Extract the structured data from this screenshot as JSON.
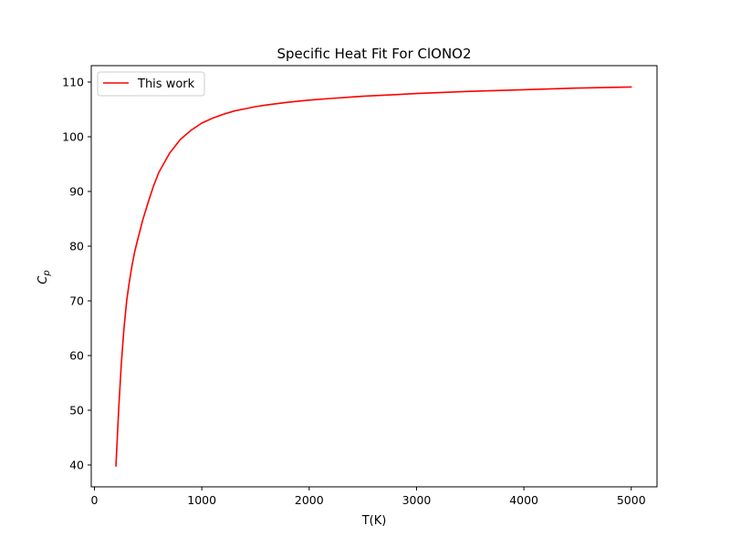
{
  "chart_data": {
    "type": "line",
    "title": "Specific Heat Fit For ClONO2",
    "xlabel": "T(K)",
    "ylabel_main": "C",
    "ylabel_sub": "p",
    "xlim": [
      -30,
      5240
    ],
    "ylim": [
      36,
      113
    ],
    "xticks": [
      0,
      1000,
      2000,
      3000,
      4000,
      5000
    ],
    "yticks": [
      40,
      50,
      60,
      70,
      80,
      90,
      100,
      110
    ],
    "legend_position": "top-left",
    "colors": {
      "series": "#ff0000"
    },
    "series": [
      {
        "name": "This work",
        "x": [
          200,
          225,
          250,
          275,
          300,
          325,
          350,
          375,
          400,
          450,
          500,
          550,
          600,
          700,
          800,
          900,
          1000,
          1100,
          1200,
          1300,
          1400,
          1500,
          1600,
          1800,
          2000,
          2200,
          2500,
          2800,
          3000,
          3500,
          4000,
          4500,
          5000
        ],
        "y": [
          39.8,
          50.0,
          58.5,
          65.0,
          70.0,
          73.5,
          76.5,
          79.0,
          81.0,
          84.8,
          88.0,
          91.0,
          93.5,
          97.0,
          99.5,
          101.2,
          102.5,
          103.4,
          104.1,
          104.7,
          105.1,
          105.5,
          105.8,
          106.3,
          106.7,
          107.0,
          107.4,
          107.7,
          107.9,
          108.3,
          108.6,
          108.9,
          109.1
        ]
      }
    ]
  }
}
